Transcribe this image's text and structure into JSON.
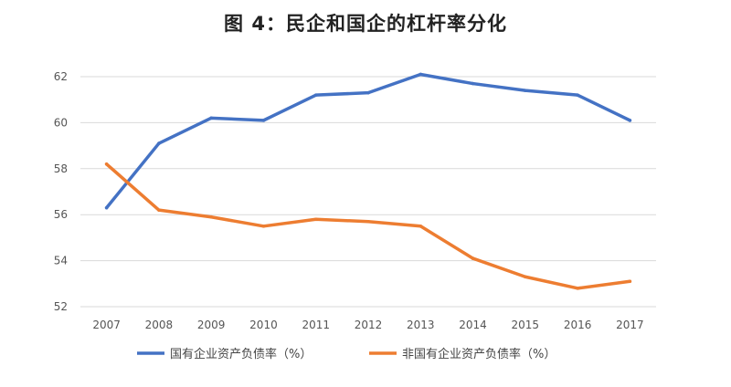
{
  "chart_data": {
    "type": "line",
    "title": "图 4：民企和国企的杠杆率分化",
    "categories": [
      "2007",
      "2008",
      "2009",
      "2010",
      "2011",
      "2012",
      "2013",
      "2014",
      "2015",
      "2016",
      "2017"
    ],
    "ylim": [
      52,
      62
    ],
    "yticks": [
      52,
      54,
      56,
      58,
      60,
      62
    ],
    "grid": true,
    "legend_position": "bottom",
    "series": [
      {
        "name": "国有企业资产负债率（%）",
        "color": "#4472C4",
        "values": [
          56.3,
          59.1,
          60.2,
          60.1,
          61.2,
          61.3,
          62.1,
          61.7,
          61.4,
          61.2,
          60.1
        ]
      },
      {
        "name": "非国有企业资产负债率（%）",
        "color": "#ED7D31",
        "values": [
          58.2,
          56.2,
          55.9,
          55.5,
          55.8,
          55.7,
          55.5,
          54.1,
          53.3,
          52.8,
          53.1
        ]
      }
    ]
  }
}
